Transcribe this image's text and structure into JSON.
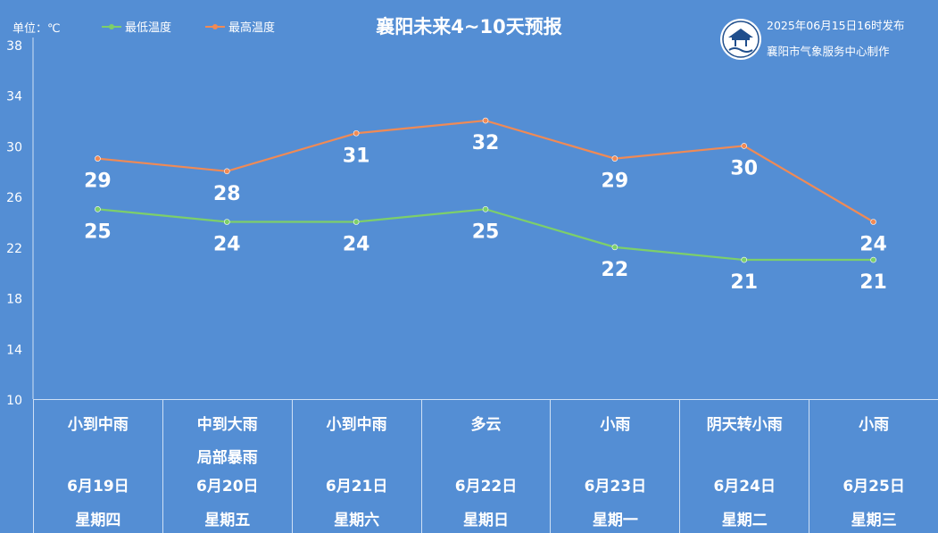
{
  "header": {
    "unit": "单位：℃",
    "title": "襄阳未来4~10天预报",
    "publish_time": "2025年06月15日16时发布",
    "maker": "襄阳市气象服务中心制作",
    "logo_icon": "xiangyang-weather-seal-icon"
  },
  "colors": {
    "background": "#548ed4",
    "low": "#7dcf6a",
    "high": "#f08a55"
  },
  "chart_data": {
    "type": "line",
    "title": "襄阳未来4~10天预报",
    "xlabel": "",
    "ylabel": "",
    "ylim": [
      10,
      38
    ],
    "yticks": [
      10,
      14,
      18,
      22,
      26,
      30,
      34,
      38
    ],
    "grid": false,
    "legend_position": "top-left",
    "categories": [
      "6月19日",
      "6月20日",
      "6月21日",
      "6月22日",
      "6月23日",
      "6月24日",
      "6月25日"
    ],
    "series": [
      {
        "name": "最低温度",
        "values": [
          25,
          24,
          24,
          25,
          22,
          21,
          21
        ]
      },
      {
        "name": "最高温度",
        "values": [
          29,
          28,
          31,
          32,
          29,
          30,
          24
        ]
      }
    ]
  },
  "forecast_table": [
    {
      "weather_lines": [
        "小到中雨"
      ],
      "date": "6月19日",
      "weekday": "星期四"
    },
    {
      "weather_lines": [
        "中到大雨",
        "局部暴雨"
      ],
      "date": "6月20日",
      "weekday": "星期五"
    },
    {
      "weather_lines": [
        "小到中雨"
      ],
      "date": "6月21日",
      "weekday": "星期六"
    },
    {
      "weather_lines": [
        "多云"
      ],
      "date": "6月22日",
      "weekday": "星期日"
    },
    {
      "weather_lines": [
        "小雨"
      ],
      "date": "6月23日",
      "weekday": "星期一"
    },
    {
      "weather_lines": [
        "阴天转小雨"
      ],
      "date": "6月24日",
      "weekday": "星期二"
    },
    {
      "weather_lines": [
        "小雨"
      ],
      "date": "6月25日",
      "weekday": "星期三"
    }
  ]
}
